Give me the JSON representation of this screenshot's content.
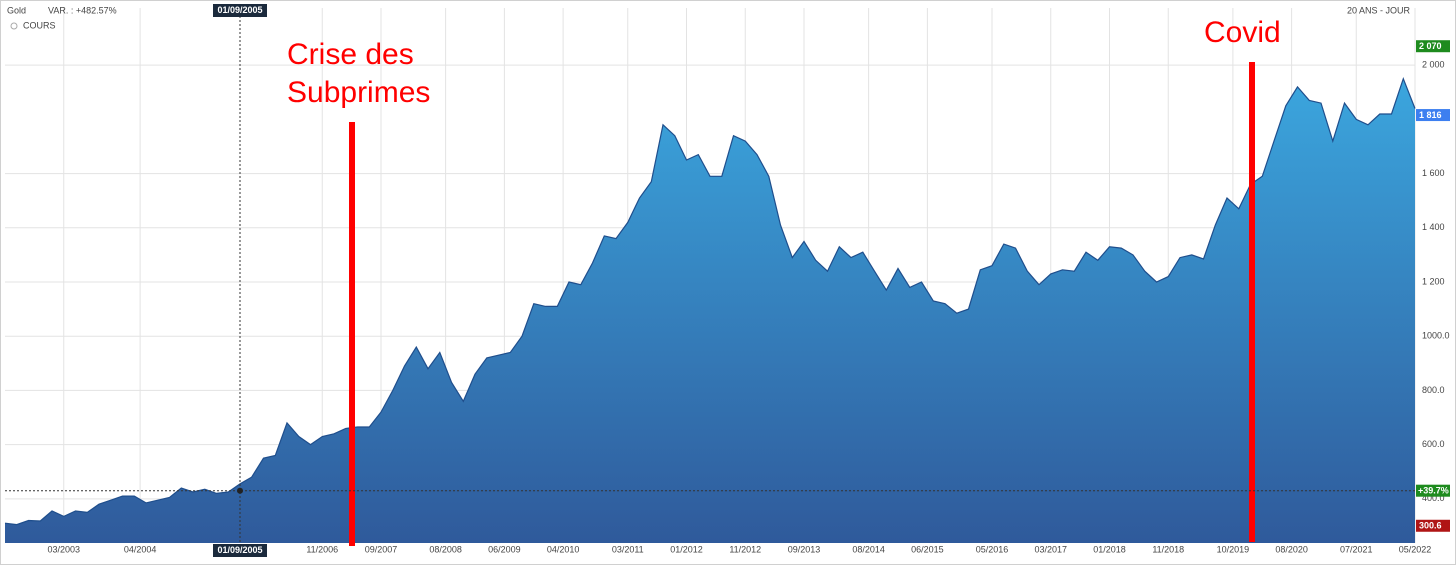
{
  "chart_data": {
    "type": "area",
    "title": "Gold",
    "subtitle": "VAR. : +482.57%",
    "period_label": "20 ANS - JOUR",
    "legend_label": "COURS",
    "annotations": [
      "Crise des",
      "Subprimes",
      "Covid"
    ],
    "x": [
      "05/2002",
      "07/2002",
      "09/2002",
      "11/2002",
      "01/2003",
      "03/2003",
      "05/2003",
      "07/2003",
      "09/2003",
      "11/2003",
      "01/2004",
      "03/2004",
      "05/2004",
      "07/2004",
      "09/2004",
      "11/2004",
      "01/2005",
      "03/2005",
      "05/2005",
      "07/2005",
      "09/2005",
      "11/2005",
      "01/2006",
      "03/2006",
      "05/2006",
      "07/2006",
      "09/2006",
      "11/2006",
      "01/2007",
      "03/2007",
      "05/2007",
      "07/2007",
      "09/2007",
      "11/2007",
      "01/2008",
      "03/2008",
      "05/2008",
      "07/2008",
      "09/2008",
      "11/2008",
      "01/2009",
      "03/2009",
      "05/2009",
      "07/2009",
      "09/2009",
      "11/2009",
      "01/2010",
      "03/2010",
      "05/2010",
      "07/2010",
      "09/2010",
      "11/2010",
      "01/2011",
      "03/2011",
      "05/2011",
      "07/2011",
      "09/2011",
      "11/2011",
      "01/2012",
      "03/2012",
      "05/2012",
      "07/2012",
      "09/2012",
      "11/2012",
      "01/2013",
      "03/2013",
      "05/2013",
      "07/2013",
      "09/2013",
      "11/2013",
      "01/2014",
      "03/2014",
      "05/2014",
      "07/2014",
      "09/2014",
      "11/2014",
      "01/2015",
      "03/2015",
      "05/2015",
      "07/2015",
      "09/2015",
      "11/2015",
      "01/2016",
      "03/2016",
      "05/2016",
      "07/2016",
      "09/2016",
      "11/2016",
      "01/2017",
      "03/2017",
      "05/2017",
      "07/2017",
      "09/2017",
      "11/2017",
      "01/2018",
      "03/2018",
      "05/2018",
      "07/2018",
      "09/2018",
      "11/2018",
      "01/2019",
      "03/2019",
      "05/2019",
      "07/2019",
      "09/2019",
      "11/2019",
      "01/2020",
      "03/2020",
      "05/2020",
      "07/2020",
      "09/2020",
      "11/2020",
      "01/2021",
      "03/2021",
      "05/2021",
      "07/2021",
      "09/2021",
      "11/2021",
      "01/2022",
      "03/2022",
      "05/2022"
    ],
    "series": [
      {
        "name": "COURS",
        "color": "#1f4e8c",
        "values": [
          310,
          305,
          320,
          318,
          355,
          335,
          355,
          350,
          380,
          395,
          410,
          410,
          385,
          395,
          405,
          440,
          425,
          435,
          420,
          425,
          455,
          480,
          550,
          560,
          680,
          630,
          600,
          630,
          640,
          660,
          665,
          665,
          720,
          800,
          890,
          960,
          880,
          940,
          830,
          760,
          860,
          920,
          930,
          940,
          1000,
          1120,
          1110,
          1110,
          1200,
          1190,
          1270,
          1370,
          1360,
          1420,
          1510,
          1570,
          1780,
          1740,
          1650,
          1670,
          1590,
          1590,
          1740,
          1720,
          1670,
          1590,
          1410,
          1290,
          1350,
          1280,
          1240,
          1330,
          1290,
          1310,
          1240,
          1170,
          1250,
          1180,
          1200,
          1130,
          1120,
          1085,
          1100,
          1245,
          1260,
          1340,
          1325,
          1240,
          1190,
          1230,
          1245,
          1240,
          1310,
          1280,
          1330,
          1325,
          1300,
          1240,
          1200,
          1220,
          1290,
          1300,
          1285,
          1410,
          1510,
          1470,
          1560,
          1590,
          1720,
          1850,
          1920,
          1870,
          1860,
          1720,
          1860,
          1800,
          1780,
          1820,
          1820,
          1950,
          1840
        ]
      }
    ],
    "fill_top": "#3ba6de",
    "fill_bottom": "#2f5a9b",
    "xlim": [
      "05/2002",
      "05/2022"
    ],
    "xticks": [
      "03/2003",
      "04/2004",
      "11/2006",
      "09/2007",
      "08/2008",
      "06/2009",
      "04/2010",
      "03/2011",
      "01/2012",
      "11/2012",
      "09/2013",
      "08/2014",
      "06/2015",
      "05/2016",
      "03/2017",
      "01/2018",
      "11/2018",
      "10/2019",
      "08/2020",
      "07/2021",
      "05/2022"
    ],
    "ylim": [
      237,
      2211
    ],
    "yticks": [
      {
        "value": 400,
        "label": "400.0"
      },
      {
        "value": 600,
        "label": "600.0"
      },
      {
        "value": 800,
        "label": "800.0"
      },
      {
        "value": 1000,
        "label": "1000.0"
      },
      {
        "value": 1200,
        "label": "1 200"
      },
      {
        "value": 1400,
        "label": "1 400"
      },
      {
        "value": 1600,
        "label": "1 600"
      },
      {
        "value": 2000,
        "label": "2 000"
      }
    ],
    "grid": true,
    "markers": [
      {
        "value": 2070,
        "label": "2 070",
        "color": "#1e8b1e"
      },
      {
        "value": 1816,
        "label": "1 816",
        "color": "#3d7ff0"
      },
      {
        "value": 300.6,
        "label": "300.6",
        "color": "#b01515"
      }
    ],
    "crosshair": {
      "date": "01/09/2005",
      "value": 430,
      "change_label": "+39.7%",
      "change_color": "#1e8b1e"
    }
  }
}
